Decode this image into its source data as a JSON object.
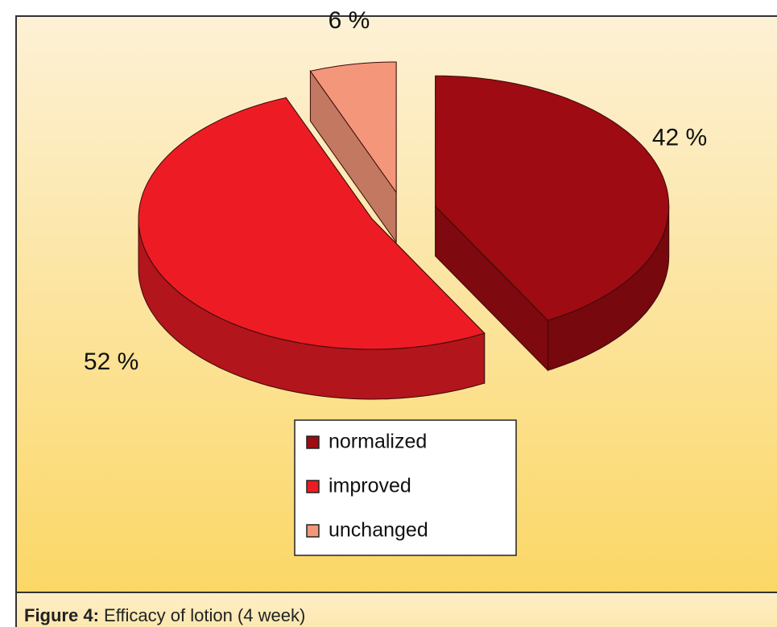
{
  "chart_data": {
    "type": "pie",
    "caption_label": "Figure 4:",
    "caption": "Efficacy of lotion (4 week)",
    "categories": [
      "normalized",
      "improved",
      "unchanged"
    ],
    "values": [
      42,
      52,
      6
    ],
    "value_labels": [
      "42 %",
      "52 %",
      "6 %"
    ],
    "colors": [
      "#9e0b12",
      "#ed1c24",
      "#f4967a"
    ],
    "legend": true
  }
}
